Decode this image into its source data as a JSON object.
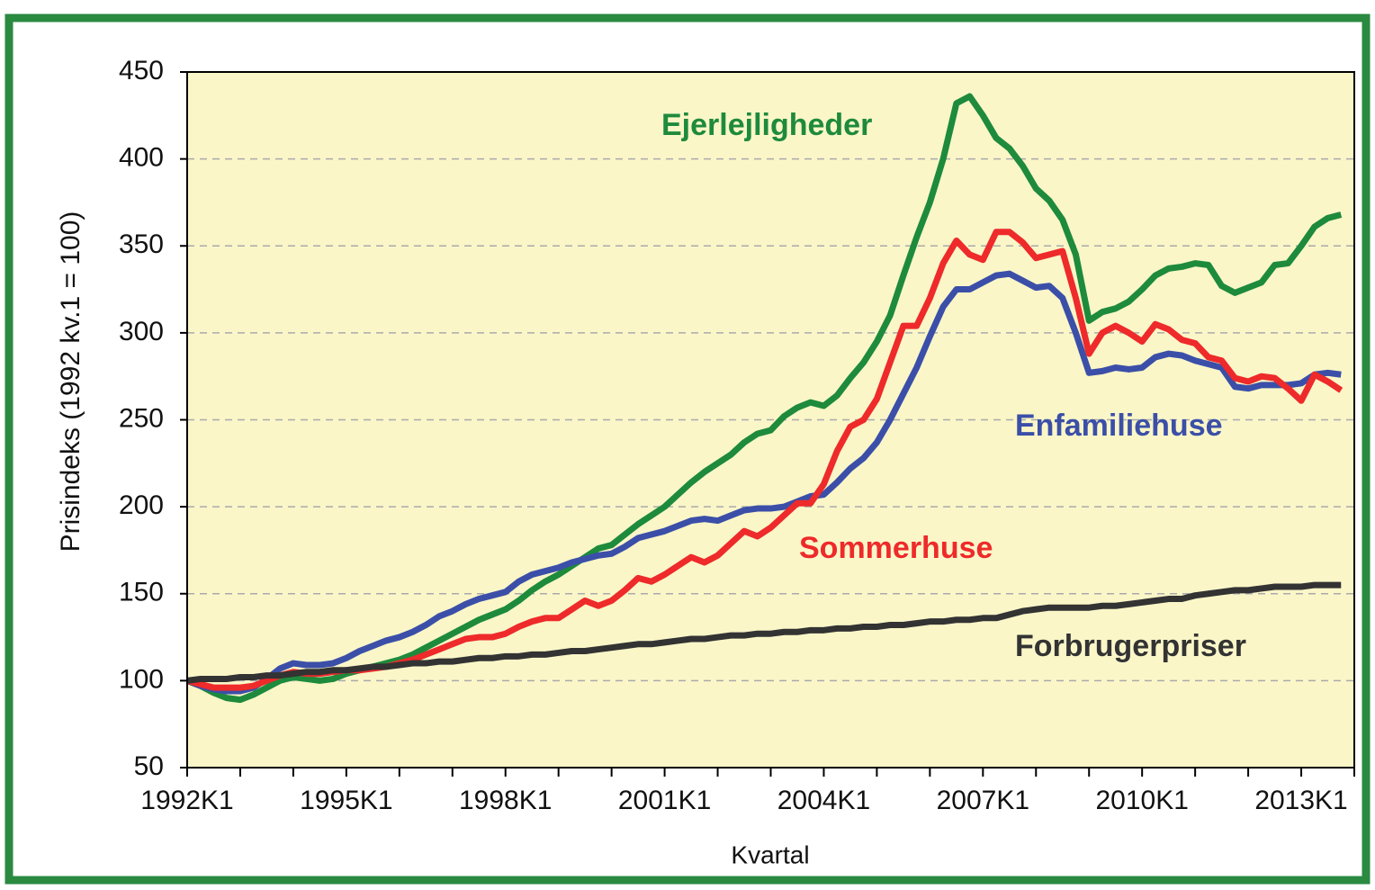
{
  "chart_data": {
    "type": "line",
    "ylabel": "Prisindeks (1992 kv.1 = 100)",
    "xlabel": "Kvartal",
    "categories": [
      "1992K1",
      null,
      null,
      null,
      null,
      null,
      null,
      null,
      null,
      null,
      null,
      null,
      "1995K1",
      null,
      null,
      null,
      null,
      null,
      null,
      null,
      null,
      null,
      null,
      null,
      "1998K1",
      null,
      null,
      null,
      null,
      null,
      null,
      null,
      null,
      null,
      null,
      null,
      "2001K1",
      null,
      null,
      null,
      null,
      null,
      null,
      null,
      null,
      null,
      null,
      null,
      "2004K1",
      null,
      null,
      null,
      null,
      null,
      null,
      null,
      null,
      null,
      null,
      null,
      "2007K1",
      null,
      null,
      null,
      null,
      null,
      null,
      null,
      null,
      null,
      null,
      null,
      "2010K1",
      null,
      null,
      null,
      null,
      null,
      null,
      null,
      null,
      null,
      null,
      null,
      "2013K1",
      null,
      null,
      null
    ],
    "ylim": [
      50,
      450
    ],
    "yticks": [
      50,
      100,
      150,
      200,
      250,
      300,
      350,
      400,
      450
    ],
    "grid": true,
    "series": [
      {
        "name": "Ejerlejligheder",
        "color": "#1e8a3c",
        "values": [
          100,
          97,
          93,
          90,
          89,
          92,
          96,
          100,
          102,
          101,
          100,
          101,
          104,
          106,
          108,
          110,
          112,
          115,
          119,
          123,
          127,
          131,
          135,
          138,
          141,
          146,
          152,
          157,
          161,
          166,
          171,
          176,
          178,
          184,
          190,
          195,
          200,
          207,
          214,
          220,
          225,
          230,
          237,
          242,
          244,
          252,
          257,
          260,
          258,
          264,
          274,
          283,
          295,
          310,
          333,
          355,
          375,
          400,
          432,
          436,
          425,
          412,
          406,
          396,
          383,
          376,
          365,
          345,
          307,
          312,
          314,
          318,
          325,
          333,
          337,
          338,
          340,
          339,
          327,
          323,
          326,
          329,
          339,
          340,
          350,
          361,
          366,
          368
        ]
      },
      {
        "name": "Enfamiliehuse",
        "color": "#3b4fa8",
        "values": [
          100,
          97,
          95,
          94,
          94,
          96,
          101,
          107,
          110,
          109,
          109,
          110,
          113,
          117,
          120,
          123,
          125,
          128,
          132,
          137,
          140,
          144,
          147,
          149,
          151,
          157,
          161,
          163,
          165,
          168,
          170,
          172,
          173,
          177,
          182,
          184,
          186,
          189,
          192,
          193,
          192,
          195,
          198,
          199,
          199,
          200,
          203,
          206,
          207,
          214,
          222,
          228,
          237,
          250,
          265,
          280,
          298,
          315,
          325,
          325,
          329,
          333,
          334,
          330,
          326,
          327,
          320,
          300,
          277,
          278,
          280,
          279,
          280,
          286,
          288,
          287,
          284,
          282,
          280,
          269,
          268,
          270,
          270,
          270,
          271,
          276,
          277,
          276
        ]
      },
      {
        "name": "Sommerhuse",
        "color": "#ee2a2a",
        "values": [
          100,
          98,
          96,
          96,
          96,
          97,
          100,
          103,
          105,
          104,
          104,
          105,
          106,
          106,
          107,
          108,
          110,
          112,
          115,
          118,
          121,
          124,
          125,
          125,
          127,
          131,
          134,
          136,
          136,
          141,
          146,
          143,
          146,
          152,
          159,
          157,
          161,
          166,
          171,
          168,
          172,
          179,
          186,
          183,
          188,
          195,
          202,
          202,
          213,
          232,
          246,
          250,
          262,
          283,
          304,
          304,
          320,
          340,
          353,
          345,
          342,
          358,
          358,
          352,
          343,
          345,
          347,
          320,
          288,
          300,
          304,
          300,
          295,
          305,
          302,
          296,
          294,
          286,
          284,
          274,
          272,
          275,
          274,
          268,
          261,
          276,
          272,
          267
        ]
      },
      {
        "name": "Forbrugerpriser",
        "color": "#333333",
        "values": [
          100,
          101,
          101,
          101,
          102,
          102,
          103,
          103,
          104,
          105,
          105,
          106,
          106,
          107,
          108,
          108,
          109,
          110,
          110,
          111,
          111,
          112,
          113,
          113,
          114,
          114,
          115,
          115,
          116,
          117,
          117,
          118,
          119,
          120,
          121,
          121,
          122,
          123,
          124,
          124,
          125,
          126,
          126,
          127,
          127,
          128,
          128,
          129,
          129,
          130,
          130,
          131,
          131,
          132,
          132,
          133,
          134,
          134,
          135,
          135,
          136,
          136,
          138,
          140,
          141,
          142,
          142,
          142,
          142,
          143,
          143,
          144,
          145,
          146,
          147,
          147,
          149,
          150,
          151,
          152,
          152,
          153,
          154,
          154,
          154,
          155,
          155,
          155
        ]
      }
    ]
  }
}
